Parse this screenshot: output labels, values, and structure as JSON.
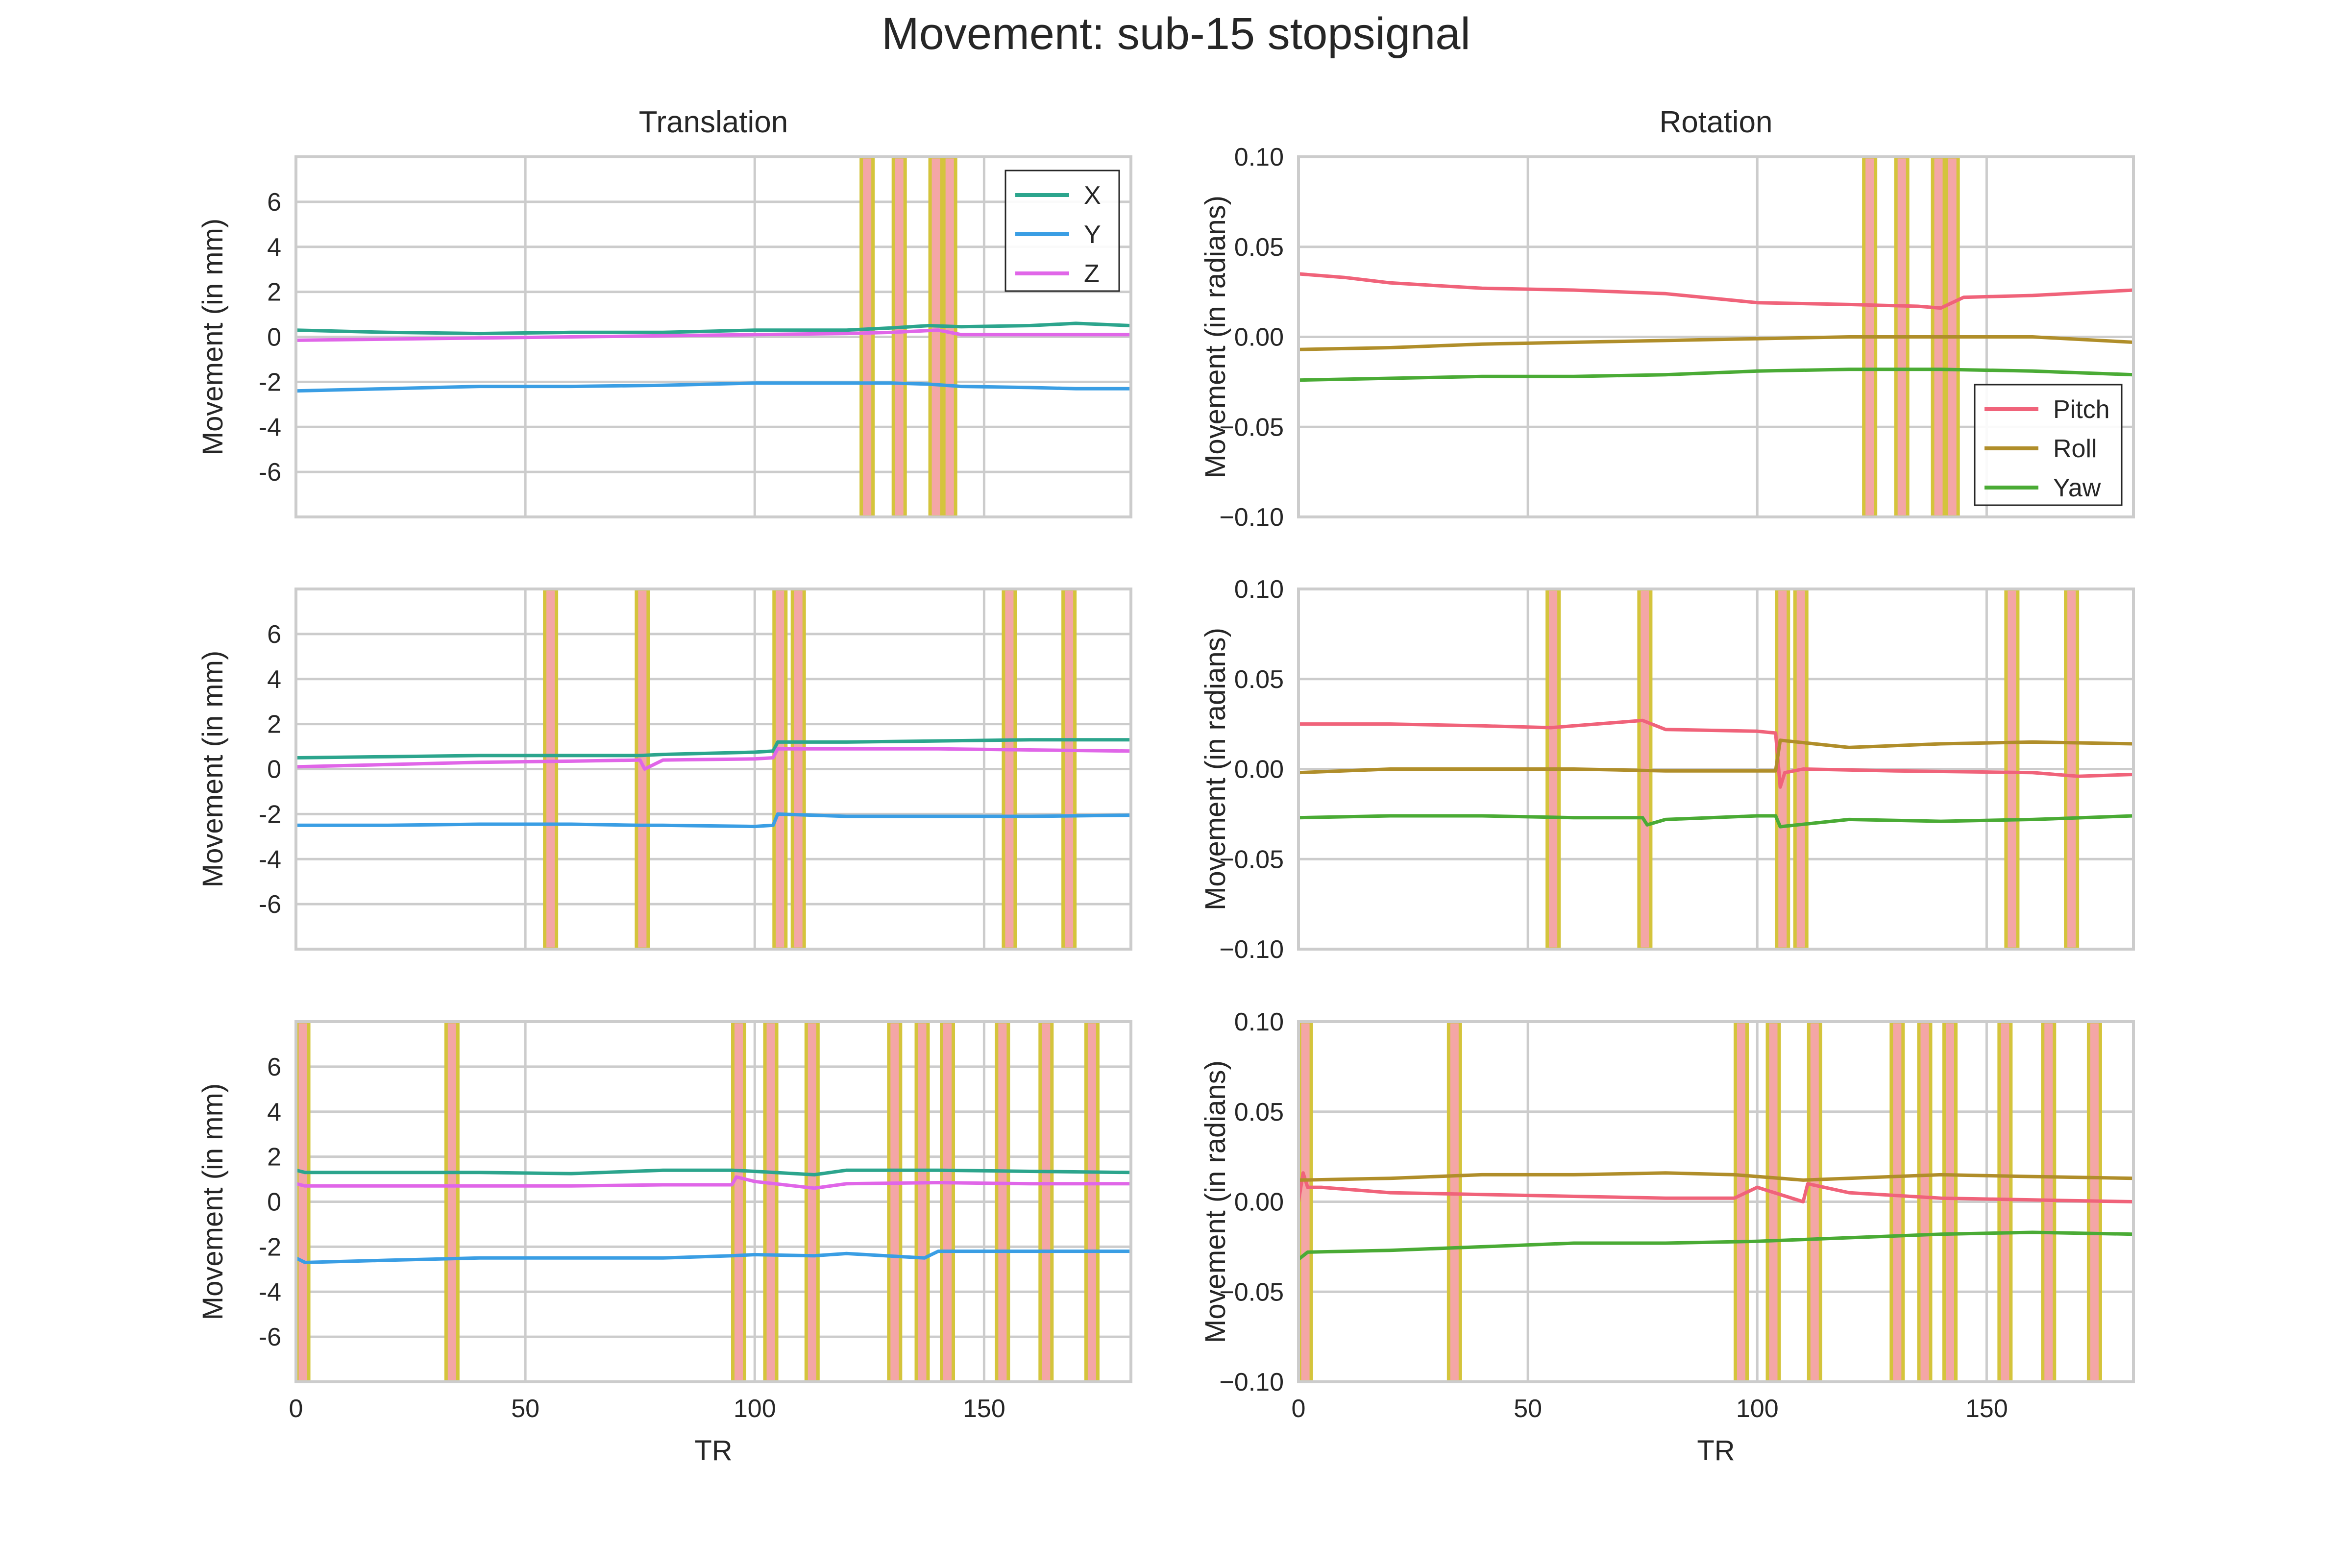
{
  "title": "Movement: sub-15 stopsignal",
  "colors": {
    "text": "#262626",
    "grid": "#cccccc",
    "spike_fill": "#f4a6a6",
    "spike_edge": "#d4c43c"
  },
  "chart_data": [
    {
      "type": "line",
      "panel": "run-1-translation",
      "column_title": "Translation",
      "xlabel": "",
      "ylabel": "Movement (in mm)",
      "xlim": [
        0,
        182
      ],
      "ylim": [
        -8,
        8
      ],
      "xticks": [],
      "yticks": [
        -6,
        -4,
        -2,
        0,
        2,
        4,
        6
      ],
      "legend": {
        "placement": "upper right",
        "entries": [
          "X",
          "Y",
          "Z"
        ]
      },
      "series": [
        {
          "name": "X",
          "color": "#2ca58d",
          "x": [
            0,
            20,
            40,
            60,
            80,
            100,
            120,
            130,
            138,
            145,
            160,
            170,
            182
          ],
          "y": [
            0.3,
            0.2,
            0.15,
            0.2,
            0.2,
            0.3,
            0.3,
            0.4,
            0.5,
            0.45,
            0.5,
            0.6,
            0.5
          ]
        },
        {
          "name": "Y",
          "color": "#3a9ee4",
          "x": [
            0,
            20,
            40,
            60,
            80,
            100,
            120,
            130,
            138,
            145,
            160,
            170,
            182
          ],
          "y": [
            -2.4,
            -2.3,
            -2.2,
            -2.2,
            -2.15,
            -2.05,
            -2.05,
            -2.05,
            -2.1,
            -2.2,
            -2.25,
            -2.3,
            -2.3
          ]
        },
        {
          "name": "Z",
          "color": "#e066e8",
          "x": [
            0,
            20,
            40,
            60,
            80,
            100,
            120,
            130,
            140,
            145,
            160,
            182
          ],
          "y": [
            -0.15,
            -0.1,
            -0.05,
            0.0,
            0.05,
            0.1,
            0.15,
            0.2,
            0.3,
            0.1,
            0.1,
            0.1
          ]
        }
      ],
      "spikes": [
        124.5,
        131.5,
        139.5,
        142.5
      ]
    },
    {
      "type": "line",
      "panel": "run-1-rotation",
      "column_title": "Rotation",
      "xlabel": "",
      "ylabel": "Movement (in radians)",
      "xlim": [
        0,
        182
      ],
      "ylim": [
        -0.1,
        0.1
      ],
      "xticks": [],
      "yticks": [
        "−0.10",
        "−0.05",
        "0.00",
        "0.05",
        "0.10"
      ],
      "legend": {
        "placement": "lower right",
        "entries": [
          "Pitch",
          "Roll",
          "Yaw"
        ]
      },
      "series": [
        {
          "name": "Pitch",
          "color": "#f0637a",
          "x": [
            0,
            10,
            20,
            40,
            60,
            80,
            100,
            120,
            135,
            140,
            145,
            160,
            182
          ],
          "y": [
            0.035,
            0.033,
            0.03,
            0.027,
            0.026,
            0.024,
            0.019,
            0.018,
            0.017,
            0.016,
            0.022,
            0.023,
            0.026
          ]
        },
        {
          "name": "Roll",
          "color": "#b08e2a",
          "x": [
            0,
            20,
            40,
            60,
            80,
            100,
            120,
            140,
            160,
            182
          ],
          "y": [
            -0.007,
            -0.006,
            -0.004,
            -0.003,
            -0.002,
            -0.001,
            0.0,
            0.0,
            0.0,
            -0.003
          ]
        },
        {
          "name": "Yaw",
          "color": "#4aab35",
          "x": [
            0,
            20,
            40,
            60,
            80,
            100,
            120,
            140,
            160,
            182
          ],
          "y": [
            -0.024,
            -0.023,
            -0.022,
            -0.022,
            -0.021,
            -0.019,
            -0.018,
            -0.018,
            -0.019,
            -0.021
          ]
        }
      ],
      "spikes": [
        124.5,
        131.5,
        139.5,
        142.5
      ]
    },
    {
      "type": "line",
      "panel": "run-2-translation",
      "xlabel": "",
      "ylabel": "Movement (in mm)",
      "xlim": [
        0,
        182
      ],
      "ylim": [
        -8,
        8
      ],
      "xticks": [],
      "yticks": [
        -6,
        -4,
        -2,
        0,
        2,
        4,
        6
      ],
      "series": [
        {
          "name": "X",
          "color": "#2ca58d",
          "x": [
            0,
            20,
            40,
            60,
            75,
            80,
            100,
            104,
            105,
            120,
            140,
            160,
            182
          ],
          "y": [
            0.5,
            0.55,
            0.6,
            0.6,
            0.6,
            0.65,
            0.75,
            0.8,
            1.2,
            1.2,
            1.25,
            1.3,
            1.3
          ]
        },
        {
          "name": "Y",
          "color": "#3a9ee4",
          "x": [
            0,
            20,
            40,
            60,
            75,
            80,
            100,
            104,
            105,
            120,
            140,
            160,
            182
          ],
          "y": [
            -2.5,
            -2.5,
            -2.45,
            -2.45,
            -2.5,
            -2.5,
            -2.55,
            -2.5,
            -2.0,
            -2.1,
            -2.1,
            -2.1,
            -2.05
          ]
        },
        {
          "name": "Z",
          "color": "#e066e8",
          "x": [
            0,
            20,
            40,
            60,
            75,
            76,
            80,
            100,
            104,
            105,
            120,
            140,
            160,
            182
          ],
          "y": [
            0.1,
            0.2,
            0.3,
            0.35,
            0.4,
            0.0,
            0.4,
            0.45,
            0.5,
            0.9,
            0.9,
            0.9,
            0.85,
            0.8
          ]
        }
      ],
      "spikes": [
        55.5,
        75.5,
        105.5,
        109.5,
        155.5,
        168.5
      ]
    },
    {
      "type": "line",
      "panel": "run-2-rotation",
      "xlabel": "",
      "ylabel": "Movement (in radians)",
      "xlim": [
        0,
        182
      ],
      "ylim": [
        -0.1,
        0.1
      ],
      "xticks": [],
      "yticks": [
        "−0.10",
        "−0.05",
        "0.00",
        "0.05",
        "0.10"
      ],
      "series": [
        {
          "name": "Pitch",
          "color": "#f0637a",
          "x": [
            0,
            20,
            40,
            55,
            60,
            75,
            76,
            80,
            100,
            104,
            105,
            106,
            110,
            130,
            160,
            170,
            182
          ],
          "y": [
            0.025,
            0.025,
            0.024,
            0.023,
            0.024,
            0.027,
            0.026,
            0.022,
            0.021,
            0.02,
            -0.01,
            -0.002,
            0.0,
            -0.001,
            -0.002,
            -0.004,
            -0.003
          ]
        },
        {
          "name": "Roll",
          "color": "#b08e2a",
          "x": [
            0,
            20,
            40,
            60,
            80,
            100,
            104,
            105,
            120,
            140,
            160,
            182
          ],
          "y": [
            -0.002,
            0.0,
            0.0,
            0.0,
            -0.001,
            -0.001,
            -0.001,
            0.016,
            0.012,
            0.014,
            0.015,
            0.014
          ]
        },
        {
          "name": "Yaw",
          "color": "#4aab35",
          "x": [
            0,
            20,
            40,
            60,
            75,
            76,
            80,
            100,
            104,
            105,
            120,
            140,
            160,
            182
          ],
          "y": [
            -0.027,
            -0.026,
            -0.026,
            -0.027,
            -0.027,
            -0.031,
            -0.028,
            -0.026,
            -0.026,
            -0.032,
            -0.028,
            -0.029,
            -0.028,
            -0.026
          ]
        }
      ],
      "spikes": [
        55.5,
        75.5,
        105.5,
        109.5,
        155.5,
        168.5
      ]
    },
    {
      "type": "line",
      "panel": "run-3-translation",
      "xlabel": "TR",
      "ylabel": "Movement (in mm)",
      "xlim": [
        0,
        182
      ],
      "ylim": [
        -8,
        8
      ],
      "xticks": [
        0,
        50,
        100,
        150
      ],
      "yticks": [
        -6,
        -4,
        -2,
        0,
        2,
        4,
        6
      ],
      "series": [
        {
          "name": "X",
          "color": "#2ca58d",
          "x": [
            0,
            2,
            20,
            40,
            60,
            80,
            95,
            100,
            113,
            120,
            140,
            160,
            182
          ],
          "y": [
            1.4,
            1.3,
            1.3,
            1.3,
            1.25,
            1.4,
            1.4,
            1.35,
            1.2,
            1.4,
            1.4,
            1.35,
            1.3
          ]
        },
        {
          "name": "Y",
          "color": "#3a9ee4",
          "x": [
            0,
            2,
            20,
            40,
            60,
            80,
            95,
            100,
            113,
            120,
            137,
            140,
            160,
            182
          ],
          "y": [
            -2.5,
            -2.7,
            -2.6,
            -2.5,
            -2.5,
            -2.5,
            -2.4,
            -2.35,
            -2.4,
            -2.3,
            -2.5,
            -2.2,
            -2.2,
            -2.2
          ]
        },
        {
          "name": "Z",
          "color": "#e066e8",
          "x": [
            0,
            2,
            20,
            40,
            60,
            80,
            95,
            96,
            100,
            113,
            120,
            140,
            160,
            182
          ],
          "y": [
            0.8,
            0.7,
            0.7,
            0.7,
            0.7,
            0.75,
            0.75,
            1.1,
            0.9,
            0.6,
            0.8,
            0.85,
            0.8,
            0.8
          ]
        }
      ],
      "spikes": [
        1.5,
        34,
        96.5,
        103.5,
        112.5,
        130.5,
        136.5,
        142,
        154,
        163.5,
        173.5
      ]
    },
    {
      "type": "line",
      "panel": "run-3-rotation",
      "xlabel": "TR",
      "ylabel": "Movement (in radians)",
      "xlim": [
        0,
        182
      ],
      "ylim": [
        -0.1,
        0.1
      ],
      "xticks": [
        0,
        50,
        100,
        150
      ],
      "yticks": [
        "−0.10",
        "−0.05",
        "0.00",
        "0.05",
        "0.10"
      ],
      "series": [
        {
          "name": "Pitch",
          "color": "#f0637a",
          "x": [
            0,
            1,
            2,
            5,
            20,
            40,
            60,
            80,
            95,
            100,
            110,
            111,
            120,
            140,
            160,
            182
          ],
          "y": [
            0.0,
            0.016,
            0.008,
            0.008,
            0.005,
            0.004,
            0.003,
            0.002,
            0.002,
            0.008,
            0.0,
            0.01,
            0.005,
            0.002,
            0.001,
            0.0
          ]
        },
        {
          "name": "Roll",
          "color": "#b08e2a",
          "x": [
            0,
            20,
            40,
            60,
            80,
            95,
            110,
            120,
            140,
            160,
            182
          ],
          "y": [
            0.012,
            0.013,
            0.015,
            0.015,
            0.016,
            0.015,
            0.012,
            0.013,
            0.015,
            0.014,
            0.013
          ]
        },
        {
          "name": "Yaw",
          "color": "#4aab35",
          "x": [
            0,
            2,
            20,
            40,
            60,
            80,
            100,
            120,
            140,
            160,
            182
          ],
          "y": [
            -0.032,
            -0.028,
            -0.027,
            -0.025,
            -0.023,
            -0.023,
            -0.022,
            -0.02,
            -0.018,
            -0.017,
            -0.018
          ]
        }
      ],
      "spikes": [
        1.5,
        34,
        96.5,
        103.5,
        112.5,
        130.5,
        136.5,
        142,
        154,
        163.5,
        173.5
      ]
    }
  ]
}
